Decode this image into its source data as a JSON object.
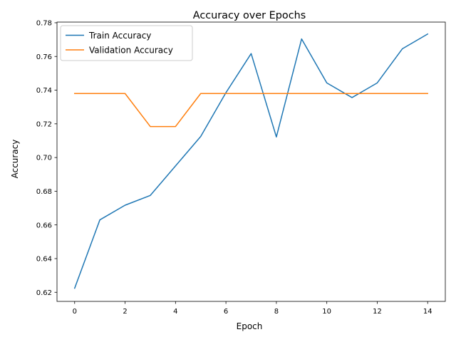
{
  "chart_data": {
    "type": "line",
    "title": "Accuracy over Epochs",
    "xlabel": "Epoch",
    "ylabel": "Accuracy",
    "xlim": [
      -0.7,
      14.7
    ],
    "ylim": [
      0.6146,
      0.7804
    ],
    "xticks": [
      0,
      2,
      4,
      6,
      8,
      10,
      12,
      14
    ],
    "xtick_labels": [
      "0",
      "2",
      "4",
      "6",
      "8",
      "10",
      "12",
      "14"
    ],
    "yticks": [
      0.62,
      0.64,
      0.66,
      0.68,
      0.7,
      0.72,
      0.74,
      0.76,
      0.78
    ],
    "ytick_labels": [
      "0.62",
      "0.64",
      "0.66",
      "0.68",
      "0.70",
      "0.72",
      "0.74",
      "0.76",
      "0.78"
    ],
    "grid": false,
    "legend_position": "upper-left",
    "x": [
      0,
      1,
      2,
      3,
      4,
      5,
      6,
      7,
      8,
      9,
      10,
      11,
      12,
      13,
      14
    ],
    "series": [
      {
        "name": "Train Accuracy",
        "color": "#1f77b4",
        "values": [
          0.6224,
          0.663,
          0.6717,
          0.6775,
          0.695,
          0.7125,
          0.7385,
          0.7617,
          0.7122,
          0.7704,
          0.7443,
          0.7356,
          0.7443,
          0.7646,
          0.7733
        ]
      },
      {
        "name": "Validation Accuracy",
        "color": "#ff7f0e",
        "values": [
          0.738,
          0.738,
          0.738,
          0.7184,
          0.7184,
          0.738,
          0.738,
          0.738,
          0.738,
          0.738,
          0.738,
          0.738,
          0.738,
          0.738,
          0.738
        ]
      }
    ]
  }
}
